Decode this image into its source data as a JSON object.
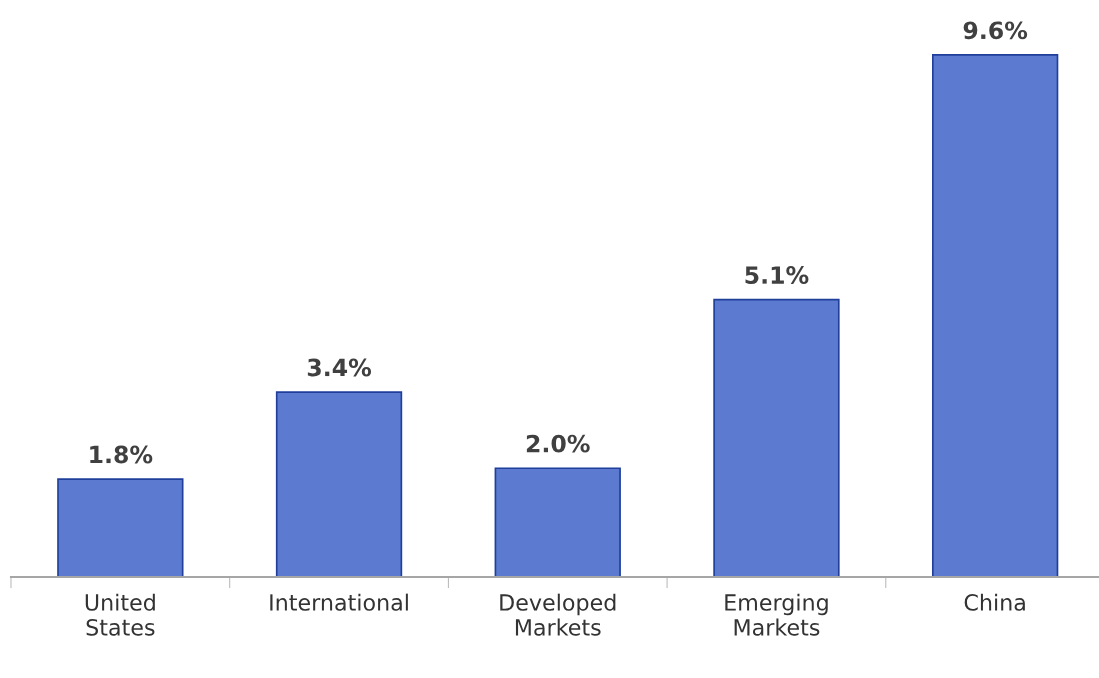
{
  "chart_data": {
    "type": "bar",
    "categories": [
      "United\nStates",
      "International",
      "Developed\nMarkets",
      "Emerging\nMarkets",
      "China"
    ],
    "values": [
      1.8,
      3.4,
      2.0,
      5.1,
      9.6
    ],
    "value_labels": [
      "1.8%",
      "3.4%",
      "2.0%",
      "5.1%",
      "9.6%"
    ],
    "color": "#5c7bd0",
    "grid": false,
    "legend": false
  }
}
